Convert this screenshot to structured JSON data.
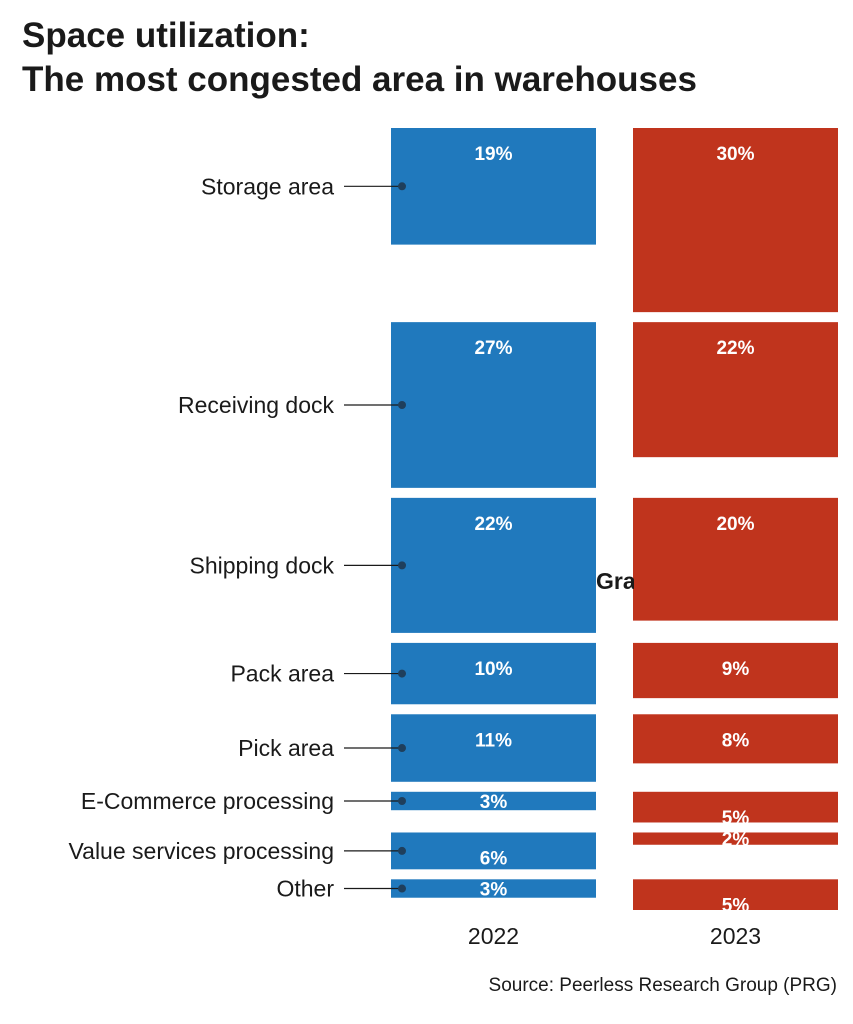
{
  "title": {
    "line1": "Space utilization:",
    "line2": "The most congested area in warehouses"
  },
  "source": "Source: Peerless Research Group (PRG)",
  "stray_text": "Gra",
  "colors": {
    "series_2022": "#2079bd",
    "series_2023": "#c0341d"
  },
  "chart_data": {
    "type": "bar",
    "orientation": "stacked-column-mekko",
    "title": "Space utilization: The most congested area in warehouses",
    "categories": [
      "Storage area",
      "Receiving dock",
      "Shipping dock",
      "Pack area",
      "Pick area",
      "E-Commerce processing",
      "Value services processing",
      "Other"
    ],
    "series": [
      {
        "name": "2022",
        "values": [
          19,
          27,
          22,
          10,
          11,
          3,
          6,
          3
        ]
      },
      {
        "name": "2023",
        "values": [
          30,
          22,
          20,
          9,
          8,
          5,
          2,
          5
        ]
      }
    ],
    "labels_2022": [
      "19%",
      "27%",
      "22%",
      "10%",
      "11%",
      "3%",
      "6%",
      "3%"
    ],
    "labels_2023": [
      "30%",
      "22%",
      "20%",
      "9%",
      "8%",
      "5%",
      "2%",
      "5%"
    ],
    "xlabel": "",
    "ylabel": "",
    "units": "%"
  }
}
